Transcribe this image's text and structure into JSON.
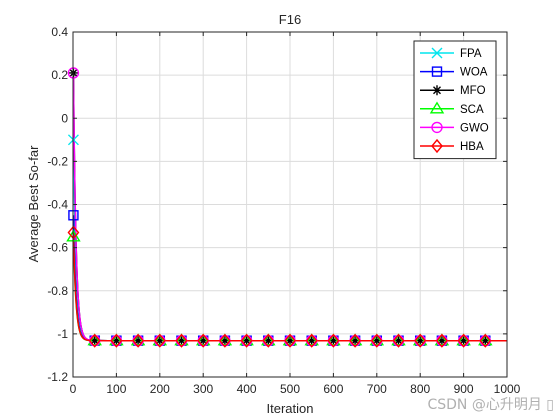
{
  "chart_data": {
    "type": "line",
    "title": "F16",
    "xlabel": "Iteration",
    "ylabel": "Average Best So-far",
    "xlim": [
      0,
      1000
    ],
    "ylim": [
      -1.2,
      0.4
    ],
    "xticks": [
      0,
      100,
      200,
      300,
      400,
      500,
      600,
      700,
      800,
      900,
      1000
    ],
    "yticks": [
      -1.2,
      -1,
      -0.8,
      -0.6,
      -0.4,
      -0.2,
      0,
      0.2,
      0.4
    ],
    "xtick_labels": [
      "0",
      "100",
      "200",
      "300",
      "400",
      "500",
      "600",
      "700",
      "800",
      "900",
      "1000"
    ],
    "ytick_labels": [
      "-1.2",
      "-1",
      "-0.8",
      "-0.6",
      "-0.4",
      "-0.2",
      "0",
      "0.2",
      "0.4"
    ],
    "grid": true,
    "legend_position": "top-right",
    "marker_x": [
      1,
      50,
      100,
      150,
      200,
      250,
      300,
      350,
      400,
      450,
      500,
      550,
      600,
      650,
      700,
      750,
      800,
      850,
      900,
      950
    ],
    "series": [
      {
        "name": "FPA",
        "color": "#00e5ee",
        "marker": "x",
        "start": -0.1,
        "final": -1.0316
      },
      {
        "name": "WOA",
        "color": "#0000ff",
        "marker": "square",
        "start": -0.45,
        "final": -1.0316
      },
      {
        "name": "MFO",
        "color": "#000000",
        "marker": "asterisk",
        "start": 0.21,
        "final": -1.0316
      },
      {
        "name": "SCA",
        "color": "#00ff00",
        "marker": "triangle",
        "start": -0.55,
        "final": -1.0316
      },
      {
        "name": "GWO",
        "color": "#ff00ff",
        "marker": "circle",
        "start": 0.21,
        "final": -1.0316
      },
      {
        "name": "HBA",
        "color": "#ff0000",
        "marker": "diamond",
        "start": -0.53,
        "final": -1.0316
      }
    ]
  },
  "watermark": "CSDN @心升明月 ▯"
}
